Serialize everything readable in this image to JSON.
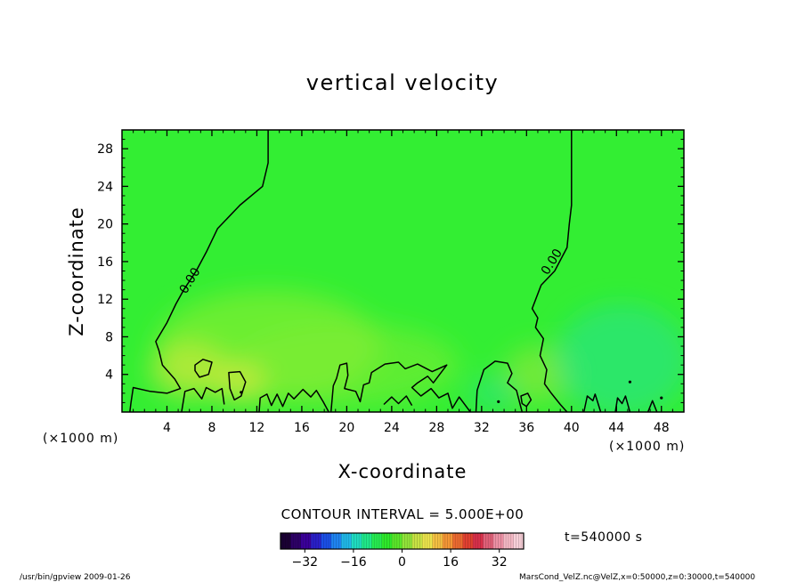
{
  "chart_data": {
    "type": "heatmap",
    "title": "vertical velocity",
    "xlabel": "X-coordinate",
    "ylabel": "Z-coordinate",
    "x_unit_left": "(×1000 m)",
    "x_unit_right": "(×1000 m)",
    "xlim": [
      0,
      50
    ],
    "ylim": [
      0,
      30
    ],
    "x_ticks": [
      4,
      8,
      12,
      16,
      20,
      24,
      28,
      32,
      36,
      40,
      44,
      48
    ],
    "y_ticks": [
      4,
      8,
      12,
      16,
      20,
      24,
      28
    ],
    "contour_interval_text": "CONTOUR INTERVAL = 5.000E+00",
    "contour_labels": [
      {
        "text": "0.00",
        "x": 6.0,
        "y": 14.0,
        "angle": -58
      },
      {
        "text": "0.00",
        "x": 38.2,
        "y": 16.0,
        "angle": -58
      }
    ],
    "zero_contours": [
      {
        "name": "left",
        "points": [
          [
            13,
            30
          ],
          [
            13,
            26.5
          ],
          [
            12.5,
            24
          ],
          [
            10.5,
            22
          ],
          [
            8.5,
            19.5
          ],
          [
            7.5,
            17
          ],
          [
            6.6,
            15
          ],
          [
            5.5,
            13
          ],
          [
            4.8,
            11.5
          ],
          [
            4,
            9.5
          ],
          [
            3,
            7.5
          ],
          [
            3.3,
            6.5
          ],
          [
            3.6,
            5
          ],
          [
            4.7,
            3.5
          ],
          [
            5.2,
            2.5
          ],
          [
            4,
            2
          ],
          [
            2.5,
            2.2
          ],
          [
            1,
            2.6
          ],
          [
            0.8,
            1
          ],
          [
            0.7,
            0
          ]
        ]
      },
      {
        "name": "right",
        "points": [
          [
            40,
            30
          ],
          [
            40,
            27
          ],
          [
            40,
            22
          ],
          [
            39.8,
            20
          ],
          [
            39.6,
            17.5
          ],
          [
            38.5,
            15
          ],
          [
            37.3,
            13.5
          ],
          [
            36.5,
            11
          ],
          [
            37,
            10
          ],
          [
            36.8,
            9
          ],
          [
            37.5,
            7.8
          ],
          [
            37.2,
            6
          ],
          [
            37.8,
            4.5
          ],
          [
            37.6,
            3
          ],
          [
            38.2,
            2
          ],
          [
            39,
            0.8
          ],
          [
            39.6,
            0
          ]
        ]
      }
    ],
    "small_contours": [
      {
        "points": [
          [
            6.5,
            5
          ],
          [
            7.2,
            5.6
          ],
          [
            8,
            5.3
          ],
          [
            7.7,
            4
          ],
          [
            6.9,
            3.7
          ],
          [
            6.5,
            4.4
          ]
        ]
      },
      {
        "points": [
          [
            9.5,
            4.2
          ],
          [
            10.5,
            4.3
          ],
          [
            11,
            3.2
          ],
          [
            10.6,
            1.7
          ],
          [
            10,
            1.3
          ],
          [
            9.6,
            2.5
          ]
        ]
      },
      {
        "points": [
          [
            35.5,
            1.7
          ],
          [
            36.1,
            2
          ],
          [
            36.4,
            1.3
          ],
          [
            36,
            0.6
          ],
          [
            35.6,
            0.9
          ]
        ]
      }
    ],
    "surface_contours": [
      {
        "points": [
          [
            5.3,
            0
          ],
          [
            5.6,
            2.2
          ],
          [
            6.4,
            2.5
          ],
          [
            7.1,
            1.4
          ],
          [
            7.5,
            2.6
          ],
          [
            8.3,
            2.1
          ],
          [
            8.9,
            2.5
          ],
          [
            9.1,
            0.8
          ]
        ]
      },
      {
        "points": [
          [
            12.2,
            0
          ],
          [
            12.3,
            1.5
          ],
          [
            12.9,
            1.9
          ],
          [
            13.3,
            0.7
          ],
          [
            13.8,
            1.9
          ],
          [
            14.3,
            0.6
          ],
          [
            14.8,
            2
          ],
          [
            15.3,
            1.4
          ],
          [
            16.1,
            2.4
          ],
          [
            16.8,
            1.6
          ],
          [
            17.3,
            2.3
          ],
          [
            17.9,
            1.1
          ],
          [
            18.4,
            0
          ]
        ]
      },
      {
        "points": [
          [
            18.6,
            0
          ],
          [
            18.8,
            2.8
          ],
          [
            19.1,
            3.6
          ],
          [
            19.4,
            5
          ],
          [
            20,
            5.2
          ],
          [
            20.1,
            3.9
          ],
          [
            19.8,
            2.5
          ],
          [
            20.8,
            2.2
          ],
          [
            21.2,
            1.1
          ],
          [
            21.5,
            2.9
          ],
          [
            22,
            3.1
          ],
          [
            22.2,
            4.2
          ],
          [
            23.4,
            5.1
          ],
          [
            24.6,
            5.3
          ],
          [
            25.2,
            4.6
          ],
          [
            26.3,
            5.1
          ],
          [
            27.6,
            4.3
          ],
          [
            28.9,
            5
          ],
          [
            27.7,
            3.1
          ],
          [
            27.2,
            3.8
          ],
          [
            26.3,
            3.1
          ],
          [
            25.8,
            2.6
          ],
          [
            26.6,
            1.7
          ],
          [
            27.5,
            2.5
          ],
          [
            28.2,
            1.5
          ],
          [
            29,
            2
          ],
          [
            29.4,
            0.4
          ],
          [
            30,
            1.6
          ],
          [
            31,
            0
          ]
        ]
      },
      {
        "points": [
          [
            31.5,
            0
          ],
          [
            31.6,
            2.3
          ],
          [
            32.2,
            4.5
          ],
          [
            33.2,
            5.4
          ],
          [
            34.3,
            5.2
          ],
          [
            34.7,
            4.1
          ],
          [
            34.3,
            3.1
          ],
          [
            35.1,
            2.3
          ],
          [
            35.6,
            0
          ]
        ]
      },
      {
        "points": [
          [
            23.3,
            0.8
          ],
          [
            24,
            1.6
          ],
          [
            24.6,
            0.9
          ],
          [
            25.3,
            1.7
          ],
          [
            25.8,
            0.7
          ]
        ]
      },
      {
        "points": [
          [
            41.1,
            0
          ],
          [
            41.4,
            1.7
          ],
          [
            41.9,
            1.2
          ],
          [
            42.1,
            1.9
          ],
          [
            42.6,
            0
          ]
        ]
      },
      {
        "points": [
          [
            43.9,
            0
          ],
          [
            44.1,
            1.5
          ],
          [
            44.5,
            0.9
          ],
          [
            44.8,
            1.7
          ],
          [
            45.2,
            0
          ]
        ]
      },
      {
        "points": [
          [
            46.8,
            0
          ],
          [
            47.2,
            1.2
          ],
          [
            47.6,
            0
          ]
        ]
      }
    ],
    "small_marks": [
      [
        10.6,
        2.1
      ],
      [
        33.5,
        1.1
      ],
      [
        45.2,
        3.2
      ],
      [
        48,
        1.5
      ]
    ],
    "colorbar": {
      "min": -40,
      "max": 40,
      "tick_values": [
        -32,
        -16,
        0,
        16,
        32
      ],
      "tick_labels": [
        "−32",
        "−16",
        "0",
        "16",
        "32"
      ],
      "colors": [
        "#1a0033",
        "#2d0066",
        "#3a0099",
        "#2a1fc8",
        "#1a4fe6",
        "#1f83f0",
        "#20b8e8",
        "#1fdcc0",
        "#20e88a",
        "#26ec50",
        "#2ee82a",
        "#5ae62a",
        "#92e43a",
        "#c8e244",
        "#ece44c",
        "#f4c042",
        "#f49636",
        "#ec6a30",
        "#e04030",
        "#d8304a",
        "#e06078",
        "#ec90a4",
        "#f4b8c4",
        "#f8d0d8"
      ]
    },
    "field": {
      "background": "#33ee33",
      "blobs": [
        {
          "x": 13,
          "y": 7,
          "rx": 10,
          "ry": 6,
          "color": "#88ee33",
          "opacity": 0.65
        },
        {
          "x": 20,
          "y": 5,
          "rx": 10,
          "ry": 4.5,
          "color": "#88ee33",
          "opacity": 0.5
        },
        {
          "x": 6,
          "y": 4.5,
          "rx": 3.5,
          "ry": 3,
          "color": "#c8e83c",
          "opacity": 0.7
        },
        {
          "x": 10.5,
          "y": 3.2,
          "rx": 2.2,
          "ry": 2.2,
          "color": "#d0e840",
          "opacity": 0.75
        },
        {
          "x": 37,
          "y": 4,
          "rx": 3,
          "ry": 3,
          "color": "#a0e838",
          "opacity": 0.55
        },
        {
          "x": 44.5,
          "y": 5.5,
          "rx": 6,
          "ry": 6,
          "color": "#22ddaa",
          "opacity": 0.45
        },
        {
          "x": 33,
          "y": 2,
          "rx": 2.2,
          "ry": 1.8,
          "color": "#22e0a0",
          "opacity": 0.45
        }
      ]
    }
  },
  "time_label": "t=540000 s",
  "footer": {
    "left": "/usr/bin/gpview  2009-01-26",
    "right": "MarsCond_VelZ.nc@VelZ,x=0:50000,z=0:30000,t=540000"
  }
}
